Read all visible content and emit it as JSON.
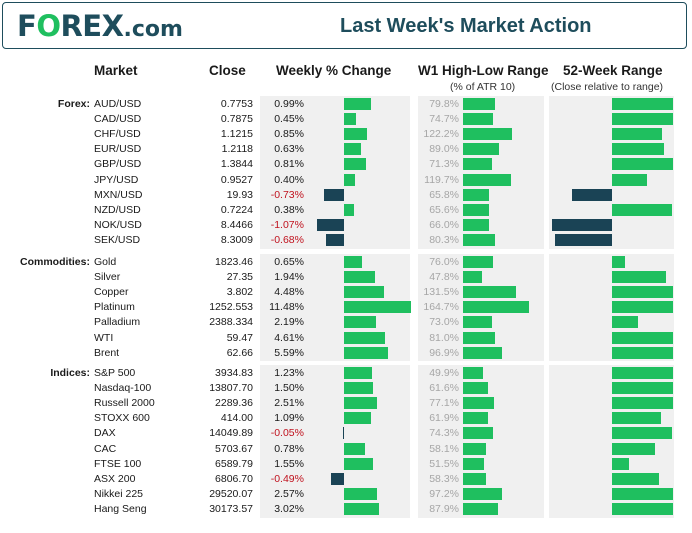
{
  "header": {
    "logo_prefix": "F",
    "logo_o": "O",
    "logo_rest": "REX",
    "logo_suffix": ".com",
    "title": "Last Week's Market Action"
  },
  "colors": {
    "positive": "#1fbf5f",
    "negative_bar": "#1a4355",
    "negative_text": "#c0121e",
    "brand": "#1e4d5c"
  },
  "chart_data": {
    "type": "table",
    "title": "Last Week's Market Action",
    "columns": {
      "market": "Market",
      "close": "Close",
      "weekly": "Weekly % Change",
      "w1": "W1 High-Low Range",
      "w1_sub": "(% of ATR 10)",
      "range52": "52-Week Range",
      "range52_sub": "(Close relative to range)"
    },
    "groups": [
      {
        "name": "Forex:",
        "rows": [
          {
            "market": "AUD/USD",
            "close": "0.7753",
            "weekly": 0.99,
            "weekly_label": "0.99%",
            "w1": 79.8,
            "w1_label": "79.8%",
            "r52": 1.0
          },
          {
            "market": "CAD/USD",
            "close": "0.7875",
            "weekly": 0.45,
            "weekly_label": "0.45%",
            "w1": 74.7,
            "w1_label": "74.7%",
            "r52": 1.0
          },
          {
            "market": "CHF/USD",
            "close": "1.1215",
            "weekly": 0.85,
            "weekly_label": "0.85%",
            "w1": 122.2,
            "w1_label": "122.2%",
            "r52": 0.82
          },
          {
            "market": "EUR/USD",
            "close": "1.2118",
            "weekly": 0.63,
            "weekly_label": "0.63%",
            "w1": 89.0,
            "w1_label": "89.0%",
            "r52": 0.86
          },
          {
            "market": "GBP/USD",
            "close": "1.3844",
            "weekly": 0.81,
            "weekly_label": "0.81%",
            "w1": 71.3,
            "w1_label": "71.3%",
            "r52": 1.0
          },
          {
            "market": "JPY/USD",
            "close": "0.9527",
            "weekly": 0.4,
            "weekly_label": "0.40%",
            "w1": 119.7,
            "w1_label": "119.7%",
            "r52": 0.57
          },
          {
            "market": "MXN/USD",
            "close": "19.93",
            "weekly": -0.73,
            "weekly_label": "-0.73%",
            "w1": 65.8,
            "w1_label": "65.8%",
            "r52": -0.65
          },
          {
            "market": "NZD/USD",
            "close": "0.7224",
            "weekly": 0.38,
            "weekly_label": "0.38%",
            "w1": 65.6,
            "w1_label": "65.6%",
            "r52": 0.98
          },
          {
            "market": "NOK/USD",
            "close": "8.4466",
            "weekly": -1.07,
            "weekly_label": "-1.07%",
            "w1": 66.0,
            "w1_label": "66.0%",
            "r52": -0.98
          },
          {
            "market": "SEK/USD",
            "close": "8.3009",
            "weekly": -0.68,
            "weekly_label": "-0.68%",
            "w1": 80.3,
            "w1_label": "80.3%",
            "r52": -0.93
          }
        ]
      },
      {
        "name": "Commodities:",
        "rows": [
          {
            "market": "Gold",
            "close": "1823.46",
            "weekly": 0.65,
            "weekly_label": "0.65%",
            "w1": 76.0,
            "w1_label": "76.0%",
            "r52": 0.22
          },
          {
            "market": "Silver",
            "close": "27.35",
            "weekly": 1.94,
            "weekly_label": "1.94%",
            "w1": 47.8,
            "w1_label": "47.8%",
            "r52": 0.88
          },
          {
            "market": "Copper",
            "close": "3.802",
            "weekly": 4.48,
            "weekly_label": "4.48%",
            "w1": 131.5,
            "w1_label": "131.5%",
            "r52": 1.0
          },
          {
            "market": "Platinum",
            "close": "1252.553",
            "weekly": 11.48,
            "weekly_label": "11.48%",
            "w1": 164.7,
            "w1_label": "164.7%",
            "r52": 1.0
          },
          {
            "market": "Palladium",
            "close": "2388.334",
            "weekly": 2.19,
            "weekly_label": "2.19%",
            "w1": 73.0,
            "w1_label": "73.0%",
            "r52": 0.42
          },
          {
            "market": "WTI",
            "close": "59.47",
            "weekly": 4.61,
            "weekly_label": "4.61%",
            "w1": 81.0,
            "w1_label": "81.0%",
            "r52": 1.0
          },
          {
            "market": "Brent",
            "close": "62.66",
            "weekly": 5.59,
            "weekly_label": "5.59%",
            "w1": 96.9,
            "w1_label": "96.9%",
            "r52": 1.0
          }
        ]
      },
      {
        "name": "Indices:",
        "rows": [
          {
            "market": "S&P 500",
            "close": "3934.83",
            "weekly": 1.23,
            "weekly_label": "1.23%",
            "w1": 49.9,
            "w1_label": "49.9%",
            "r52": 1.0
          },
          {
            "market": "Nasdaq-100",
            "close": "13807.70",
            "weekly": 1.5,
            "weekly_label": "1.50%",
            "w1": 61.6,
            "w1_label": "61.6%",
            "r52": 1.0
          },
          {
            "market": "Russell 2000",
            "close": "2289.36",
            "weekly": 2.51,
            "weekly_label": "2.51%",
            "w1": 77.1,
            "w1_label": "77.1%",
            "r52": 1.0
          },
          {
            "market": "STOXX 600",
            "close": "414.00",
            "weekly": 1.09,
            "weekly_label": "1.09%",
            "w1": 61.9,
            "w1_label": "61.9%",
            "r52": 0.8
          },
          {
            "market": "DAX",
            "close": "14049.89",
            "weekly": -0.05,
            "weekly_label": "-0.05%",
            "w1": 74.3,
            "w1_label": "74.3%",
            "r52": 0.98
          },
          {
            "market": "CAC",
            "close": "5703.67",
            "weekly": 0.78,
            "weekly_label": "0.78%",
            "w1": 58.1,
            "w1_label": "58.1%",
            "r52": 0.7
          },
          {
            "market": "FTSE 100",
            "close": "6589.79",
            "weekly": 1.55,
            "weekly_label": "1.55%",
            "w1": 51.5,
            "w1_label": "51.5%",
            "r52": 0.28
          },
          {
            "market": "ASX 200",
            "close": "6806.70",
            "weekly": -0.49,
            "weekly_label": "-0.49%",
            "w1": 58.3,
            "w1_label": "58.3%",
            "r52": 0.77
          },
          {
            "market": "Nikkei 225",
            "close": "29520.07",
            "weekly": 2.57,
            "weekly_label": "2.57%",
            "w1": 97.2,
            "w1_label": "97.2%",
            "r52": 1.0
          },
          {
            "market": "Hang Seng",
            "close": "30173.57",
            "weekly": 3.02,
            "weekly_label": "3.02%",
            "w1": 87.9,
            "w1_label": "87.9%",
            "r52": 1.0
          }
        ]
      }
    ]
  }
}
